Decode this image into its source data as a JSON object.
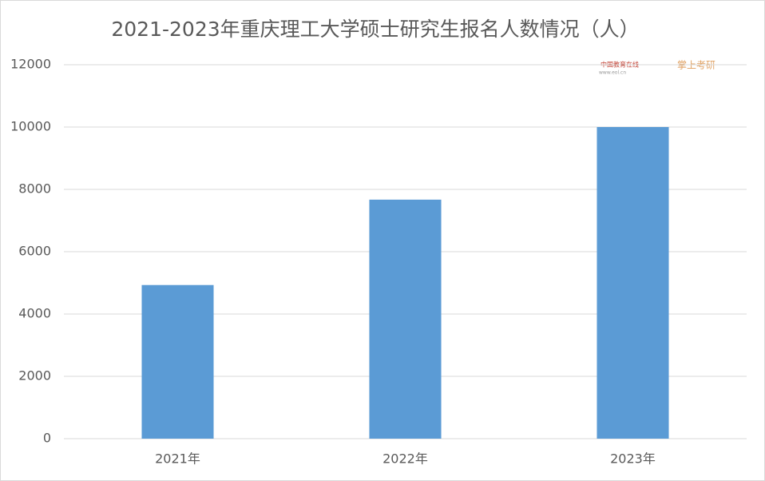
{
  "chart_data": {
    "type": "bar",
    "title": "2021-2023年重庆理工大学硕士研究生报名人数情况（人）",
    "categories": [
      "2021年",
      "2022年",
      "2023年"
    ],
    "values": [
      4930,
      7670,
      10000
    ],
    "color": "#5b9bd5",
    "ylim": [
      0,
      12000
    ],
    "yticks": [
      0,
      2000,
      4000,
      6000,
      8000,
      10000,
      12000
    ],
    "grid": true,
    "watermarks": [
      "中国教育在线",
      "www.eol.cn",
      "掌上考研"
    ]
  }
}
